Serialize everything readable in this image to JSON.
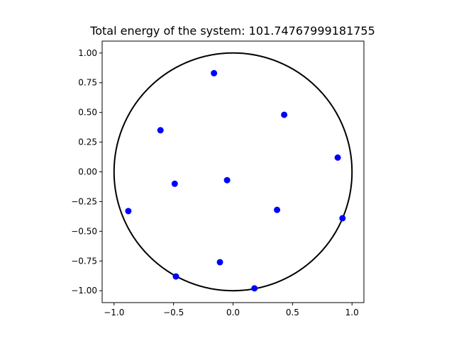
{
  "chart_data": {
    "type": "scatter",
    "title": "Total energy of the system: 101.74767999181755",
    "xlabel": "",
    "ylabel": "",
    "xlim": [
      -1.1,
      1.1
    ],
    "ylim": [
      -1.1,
      1.1
    ],
    "grid": false,
    "aspect": "equal",
    "shapes": [
      {
        "name": "unit-circle",
        "type": "circle",
        "center": [
          0,
          0
        ],
        "radius": 1.0,
        "color": "#000000"
      }
    ],
    "x_ticks": [
      {
        "value": -1.0,
        "label": "−1.0"
      },
      {
        "value": -0.5,
        "label": "−0.5"
      },
      {
        "value": 0.0,
        "label": "0.0"
      },
      {
        "value": 0.5,
        "label": "0.5"
      },
      {
        "value": 1.0,
        "label": "1.0"
      }
    ],
    "y_ticks": [
      {
        "value": 1.0,
        "label": "1.00"
      },
      {
        "value": 0.75,
        "label": "0.75"
      },
      {
        "value": 0.5,
        "label": "0.50"
      },
      {
        "value": 0.25,
        "label": "0.25"
      },
      {
        "value": 0.0,
        "label": "0.00"
      },
      {
        "value": -0.25,
        "label": "−0.25"
      },
      {
        "value": -0.5,
        "label": "−0.50"
      },
      {
        "value": -0.75,
        "label": "−0.75"
      },
      {
        "value": -1.0,
        "label": "−1.00"
      }
    ],
    "series": [
      {
        "name": "charges",
        "color": "#0000ff",
        "points": [
          {
            "x": -0.16,
            "y": 0.83
          },
          {
            "x": 0.43,
            "y": 0.48
          },
          {
            "x": -0.61,
            "y": 0.35
          },
          {
            "x": 0.88,
            "y": 0.12
          },
          {
            "x": -0.05,
            "y": -0.07
          },
          {
            "x": -0.49,
            "y": -0.1
          },
          {
            "x": -0.88,
            "y": -0.33
          },
          {
            "x": 0.37,
            "y": -0.32
          },
          {
            "x": 0.92,
            "y": -0.39
          },
          {
            "x": -0.11,
            "y": -0.76
          },
          {
            "x": -0.48,
            "y": -0.88
          },
          {
            "x": 0.18,
            "y": -0.98
          }
        ]
      }
    ]
  }
}
